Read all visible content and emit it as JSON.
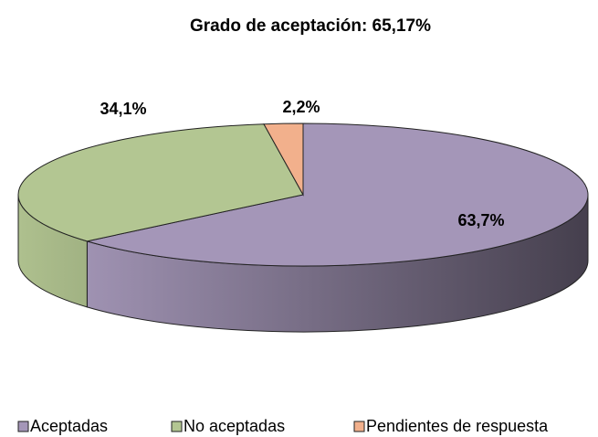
{
  "chart_data": {
    "type": "pie",
    "title": "Grado de aceptación: 65,17%",
    "categories": [
      "Aceptadas",
      "No aceptadas",
      "Pendientes de respuesta"
    ],
    "values": [
      63.7,
      34.1,
      2.2
    ],
    "value_labels": [
      "63,7%",
      "34,1%",
      "2,2%"
    ],
    "colors": [
      "#a496b8",
      "#b3c692",
      "#f2b08c"
    ],
    "legend": "bottom"
  }
}
